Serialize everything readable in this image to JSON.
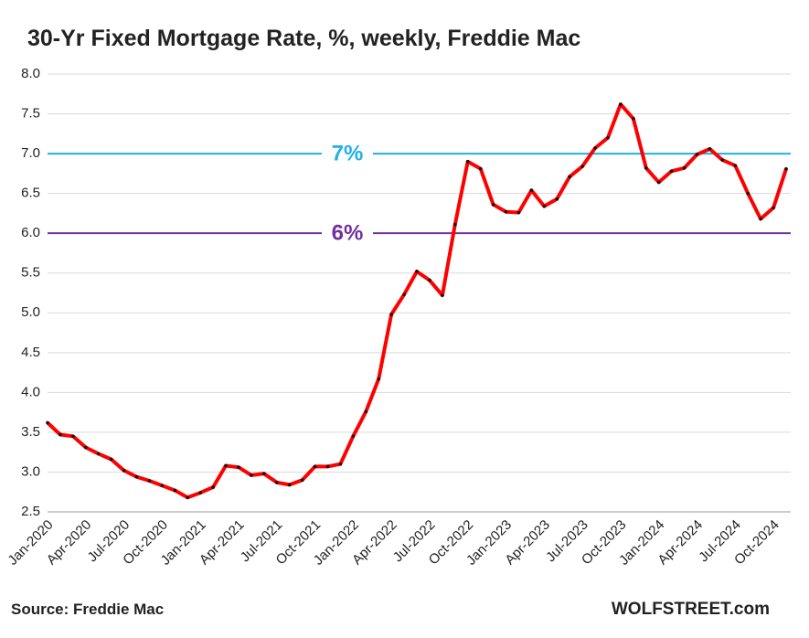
{
  "chart_data": {
    "type": "line",
    "title": "30-Yr Fixed Mortgage Rate, %, weekly, Freddie Mac",
    "source": "Source: Freddie Mac",
    "brand": "WOLFSTREET.com",
    "categories": [
      "Jan-2020",
      null,
      null,
      "Apr-2020",
      null,
      null,
      "Jul-2020",
      null,
      null,
      "Oct-2020",
      null,
      null,
      "Jan-2021",
      null,
      null,
      "Apr-2021",
      null,
      null,
      "Jul-2021",
      null,
      null,
      "Oct-2021",
      null,
      null,
      "Jan-2022",
      null,
      null,
      "Apr-2022",
      null,
      null,
      "Jul-2022",
      null,
      null,
      "Oct-2022",
      null,
      null,
      "Jan-2023",
      null,
      null,
      "Apr-2023",
      null,
      null,
      "Jul-2023",
      null,
      null,
      "Oct-2023",
      null,
      null,
      "Jan-2024",
      null,
      null,
      "Apr-2024",
      null,
      null,
      "Jul-2024",
      null,
      null,
      "Oct-2024",
      null
    ],
    "series": [
      {
        "name": "30-Yr Fixed Mortgage Rate",
        "color": "#ff0000",
        "values": [
          3.62,
          3.47,
          3.45,
          3.31,
          3.23,
          3.16,
          3.02,
          2.94,
          2.89,
          2.83,
          2.77,
          2.68,
          2.74,
          2.81,
          3.08,
          3.06,
          2.96,
          2.98,
          2.87,
          2.84,
          2.9,
          3.07,
          3.07,
          3.1,
          3.45,
          3.76,
          4.17,
          4.98,
          5.23,
          5.52,
          5.41,
          5.22,
          6.11,
          6.9,
          6.81,
          6.36,
          6.27,
          6.26,
          6.54,
          6.34,
          6.43,
          6.71,
          6.84,
          7.07,
          7.2,
          7.62,
          7.44,
          6.82,
          6.64,
          6.78,
          6.82,
          6.99,
          7.06,
          6.92,
          6.85,
          6.5,
          6.18,
          6.32,
          6.81
        ]
      }
    ],
    "annotations": [
      {
        "value": 7,
        "label": "7%",
        "color": "#1fb0e6"
      },
      {
        "value": 6,
        "label": "6%",
        "color": "#7030a0"
      }
    ],
    "ylim": [
      2.5,
      8.0
    ],
    "yticks": [
      {
        "value": 2.5,
        "label": "2.5"
      },
      {
        "value": 3,
        "label": "3.0"
      },
      {
        "value": 3.5,
        "label": "3.5"
      },
      {
        "value": 4,
        "label": "4.0"
      },
      {
        "value": 4.5,
        "label": "4.5"
      },
      {
        "value": 5,
        "label": "5.0"
      },
      {
        "value": 5.5,
        "label": "5.5"
      },
      {
        "value": 6,
        "label": "6.0"
      },
      {
        "value": 6.5,
        "label": "6.5"
      },
      {
        "value": 7,
        "label": "7.0"
      },
      {
        "value": 7.5,
        "label": "7.5"
      },
      {
        "value": 8,
        "label": "8.0"
      }
    ],
    "grid": true
  }
}
